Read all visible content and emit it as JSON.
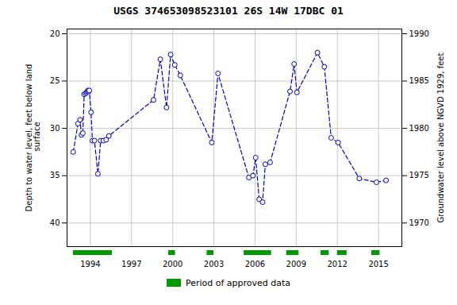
{
  "chart_data": {
    "type": "line",
    "title": "USGS 374653098523101 26S 14W 17DBC 01",
    "ylabel": "Depth to water level, feet below land\n surface",
    "y2label": "Groundwater level above NGVD 1929, feet",
    "x": [
      1992.75,
      1993.1,
      1993.25,
      1993.35,
      1993.45,
      1993.55,
      1993.65,
      1993.72,
      1993.78,
      1993.83,
      1993.88,
      1993.92,
      1994.05,
      1994.15,
      1994.3,
      1994.55,
      1994.75,
      1994.95,
      1995.15,
      1995.35,
      1998.6,
      1999.1,
      1999.55,
      1999.85,
      2000.15,
      2000.55,
      2002.85,
      2003.3,
      2005.55,
      2005.85,
      2006.05,
      2006.3,
      2006.55,
      2006.75,
      2007.1,
      2008.55,
      2008.85,
      2009.05,
      2010.55,
      2011.05,
      2011.55,
      2012.05,
      2013.6,
      2014.85,
      2015.55
    ],
    "series": [
      {
        "color": "#0000CC",
        "line_style": "dashed",
        "marker": "circle",
        "values": [
          32.5,
          29.5,
          29.1,
          30.7,
          30.5,
          26.4,
          26.3,
          26.2,
          26.1,
          26.0,
          26.1,
          26.0,
          28.3,
          31.3,
          31.3,
          34.8,
          31.3,
          31.3,
          31.2,
          30.8,
          27.0,
          22.7,
          27.8,
          22.2,
          23.3,
          24.4,
          31.5,
          24.2,
          35.2,
          35.0,
          33.1,
          37.5,
          37.8,
          33.8,
          33.6,
          26.1,
          23.2,
          26.2,
          22.0,
          23.5,
          31.0,
          31.5,
          35.3,
          35.7,
          35.5
        ]
      }
    ],
    "xlim": [
      1992.3,
      2016.7
    ],
    "xticks": [
      1994,
      1997,
      2000,
      2003,
      2006,
      2009,
      2012,
      2015
    ],
    "ylim": [
      42.5,
      19.5
    ],
    "yticks": [
      20,
      25,
      30,
      35,
      40
    ],
    "y2lim": [
      1967.5,
      1990.5
    ],
    "y2ticks": [
      1970,
      1975,
      1980,
      1985,
      1990
    ],
    "grid": true,
    "legend": "bottom",
    "periods": {
      "name": "Period of approved data",
      "color": "#009900",
      "ranges": [
        [
          1992.75,
          1995.6
        ],
        [
          1999.7,
          2000.2
        ],
        [
          2002.5,
          2003.0
        ],
        [
          2005.2,
          2007.2
        ],
        [
          2008.3,
          2009.2
        ],
        [
          2010.8,
          2011.4
        ],
        [
          2012.0,
          2012.7
        ],
        [
          2014.5,
          2015.1
        ]
      ]
    }
  }
}
